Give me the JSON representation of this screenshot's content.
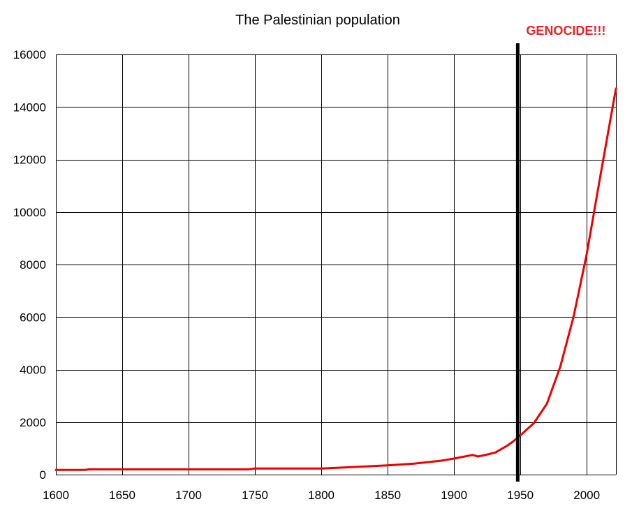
{
  "chart_data": {
    "type": "line",
    "title": "The Palestinian population",
    "xlabel": "",
    "ylabel": "",
    "xlim": [
      1600,
      2022
    ],
    "ylim": [
      0,
      16000
    ],
    "x_ticks": [
      1600,
      1650,
      1700,
      1750,
      1800,
      1850,
      1900,
      1950,
      2000
    ],
    "y_ticks": [
      0,
      2000,
      4000,
      6000,
      8000,
      10000,
      12000,
      14000,
      16000
    ],
    "x_tick_labels": [
      "1600",
      "1650",
      "1700",
      "1750",
      "1800",
      "1850",
      "1900",
      "1950",
      "2000"
    ],
    "y_tick_labels": [
      "0",
      "2000",
      "4000",
      "6000",
      "8000",
      "10000",
      "12000",
      "14000",
      "16000"
    ],
    "grid": true,
    "series": [
      {
        "name": "The Palestinian population",
        "color": "#ee0000",
        "x": [
          1600,
          1622,
          1625,
          1650,
          1700,
          1745,
          1750,
          1800,
          1850,
          1870,
          1890,
          1900,
          1914,
          1918,
          1922,
          1931,
          1940,
          1945,
          1950,
          1960,
          1970,
          1980,
          1990,
          2000,
          2010,
          2022
        ],
        "y": [
          180,
          180,
          200,
          200,
          200,
          200,
          230,
          230,
          350,
          420,
          530,
          610,
          750,
          690,
          730,
          840,
          1100,
          1280,
          1500,
          1950,
          2700,
          4100,
          6000,
          8400,
          11300,
          14700
        ]
      }
    ],
    "annotations": [
      {
        "type": "vline",
        "x": 1948,
        "color": "#000000",
        "label": "GENOCIDE!!!",
        "label_color": "#ee2222"
      }
    ]
  }
}
